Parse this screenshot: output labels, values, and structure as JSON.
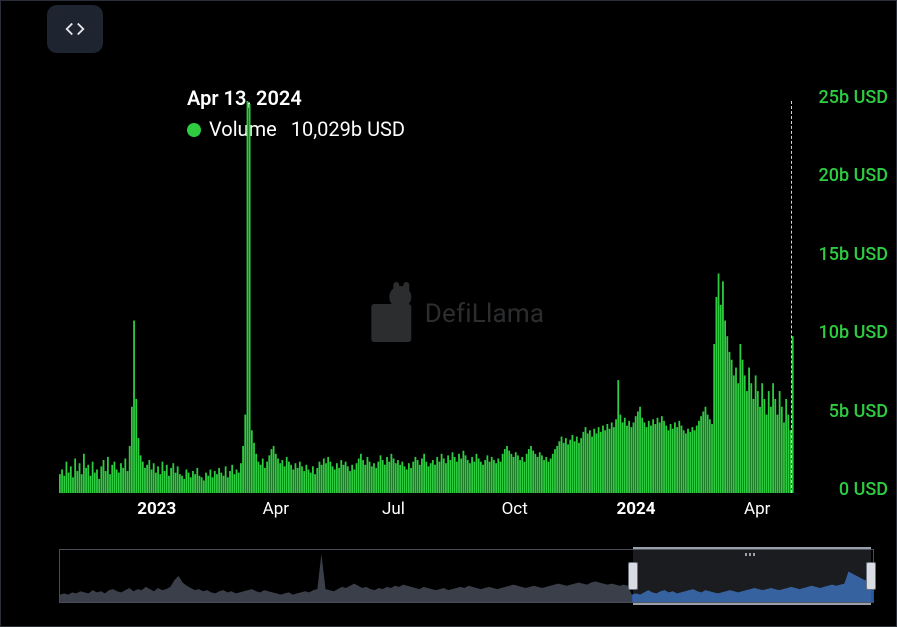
{
  "colors": {
    "background": "#000000",
    "frame_border": "#2a2f3a",
    "bar": "#2ecc40",
    "bar_alt": "#19a82f",
    "axis_text": "#ffffff",
    "y_tick": "#2ecc40",
    "crosshair": "#cfd3dc",
    "code_btn_bg": "#1e2430",
    "watermark": "#9aa0aa",
    "brush_border": "#474c56",
    "brush_area_fill": "#3a3f49",
    "brush_selected_fill": "#245aa6",
    "brush_window_bg": "rgba(120,126,140,0.22)",
    "brush_handle": "#d9dce3"
  },
  "tooltip": {
    "date": "Apr 13, 2024",
    "dot_color": "#2ecc40",
    "metric_label": "Volume",
    "value": "10,029b USD"
  },
  "watermark": {
    "text": "DefiLlama"
  },
  "chart": {
    "type": "bar",
    "y": {
      "min": 0,
      "max": 25,
      "unit": "b USD",
      "ticks": [
        {
          "v": 25,
          "label": "25b USD"
        },
        {
          "v": 20,
          "label": "20b USD"
        },
        {
          "v": 15,
          "label": "15b USD"
        },
        {
          "v": 10,
          "label": "10b USD"
        },
        {
          "v": 5,
          "label": "5b USD"
        },
        {
          "v": 0,
          "label": "0 USD"
        }
      ]
    },
    "x": {
      "ticks": [
        {
          "pos": 0.133,
          "label": "2023",
          "bold": true
        },
        {
          "pos": 0.295,
          "label": "Apr",
          "bold": false
        },
        {
          "pos": 0.455,
          "label": "Jul",
          "bold": false
        },
        {
          "pos": 0.62,
          "label": "Oct",
          "bold": false
        },
        {
          "pos": 0.785,
          "label": "2024",
          "bold": true
        },
        {
          "pos": 0.95,
          "label": "Apr",
          "bold": false
        }
      ]
    },
    "crosshair_x": 0.996,
    "bars": [
      1.2,
      1.5,
      1.1,
      2.0,
      1.3,
      1.7,
      1.0,
      2.2,
      1.4,
      1.9,
      1.2,
      2.5,
      1.6,
      1.8,
      1.1,
      2.0,
      1.3,
      1.5,
      0.9,
      1.7,
      2.1,
      1.4,
      2.3,
      1.2,
      1.8,
      2.0,
      1.5,
      1.3,
      1.9,
      1.6,
      2.2,
      1.4,
      3.0,
      5.5,
      11.0,
      6.0,
      3.5,
      2.4,
      2.0,
      1.6,
      1.8,
      2.1,
      1.5,
      1.9,
      1.3,
      1.7,
      1.2,
      2.0,
      1.4,
      1.8,
      1.1,
      1.6,
      1.9,
      1.3,
      1.7,
      1.2,
      1.1,
      0.9,
      1.5,
      1.3,
      1.0,
      1.4,
      1.2,
      1.6,
      1.1,
      1.0,
      0.8,
      1.3,
      1.1,
      1.5,
      1.0,
      1.4,
      1.2,
      1.6,
      1.3,
      1.1,
      1.7,
      1.0,
      1.4,
      1.8,
      1.2,
      1.5,
      1.3,
      1.9,
      3.0,
      5.0,
      25.4,
      24.8,
      4.0,
      3.2,
      2.5,
      2.0,
      1.8,
      2.2,
      1.6,
      2.0,
      2.4,
      2.8,
      3.0,
      2.5,
      2.2,
      1.9,
      2.1,
      1.7,
      2.3,
      2.0,
      1.8,
      1.5,
      1.9,
      1.6,
      2.0,
      1.7,
      1.4,
      1.8,
      1.5,
      1.3,
      1.7,
      1.2,
      1.6,
      2.0,
      1.8,
      2.2,
      1.9,
      2.3,
      2.0,
      1.7,
      1.5,
      1.9,
      1.6,
      2.1,
      1.8,
      2.0,
      1.7,
      1.4,
      1.8,
      1.5,
      1.9,
      2.2,
      2.5,
      2.1,
      1.8,
      2.3,
      2.0,
      1.7,
      1.9,
      1.6,
      2.0,
      2.4,
      2.1,
      1.8,
      2.3,
      2.0,
      2.5,
      2.2,
      1.9,
      2.1,
      1.8,
      2.0,
      1.7,
      1.5,
      1.9,
      1.6,
      2.0,
      2.3,
      2.1,
      1.8,
      2.2,
      2.5,
      2.0,
      1.7,
      1.9,
      2.1,
      1.8,
      2.3,
      2.0,
      2.5,
      2.2,
      1.9,
      2.4,
      2.1,
      2.6,
      2.3,
      2.0,
      2.5,
      2.2,
      2.7,
      2.4,
      2.1,
      1.9,
      2.3,
      2.0,
      2.5,
      2.2,
      2.0,
      1.8,
      2.1,
      2.4,
      2.0,
      2.3,
      2.1,
      1.9,
      2.2,
      2.0,
      2.5,
      2.8,
      3.0,
      2.7,
      2.5,
      2.3,
      2.6,
      2.4,
      2.1,
      2.3,
      2.0,
      2.5,
      2.8,
      3.0,
      2.7,
      2.5,
      2.3,
      2.6,
      2.4,
      2.1,
      2.3,
      2.0,
      2.2,
      2.5,
      2.8,
      3.0,
      3.3,
      3.6,
      3.2,
      3.5,
      3.1,
      3.4,
      3.7,
      3.3,
      3.6,
      3.2,
      3.5,
      3.9,
      4.2,
      3.8,
      4.0,
      3.6,
      4.1,
      3.8,
      4.2,
      3.9,
      4.3,
      4.0,
      4.4,
      4.1,
      4.5,
      4.2,
      4.7,
      7.2,
      5.0,
      4.5,
      4.8,
      4.3,
      4.6,
      4.2,
      4.5,
      4.9,
      5.2,
      5.5,
      4.8,
      4.5,
      4.2,
      4.6,
      4.3,
      4.7,
      4.4,
      4.8,
      4.5,
      4.9,
      4.6,
      4.3,
      4.0,
      4.4,
      4.1,
      4.5,
      4.2,
      4.6,
      4.3,
      4.0,
      3.8,
      4.1,
      3.9,
      4.2,
      4.0,
      4.3,
      4.6,
      4.9,
      5.2,
      5.5,
      5.0,
      4.7,
      4.4,
      9.5,
      12.5,
      14.0,
      12.0,
      13.5,
      11.0,
      10.0,
      9.0,
      8.5,
      7.5,
      8.0,
      7.0,
      9.5,
      8.5,
      7.5,
      6.5,
      8.0,
      7.0,
      6.0,
      7.5,
      6.5,
      5.5,
      7.0,
      6.0,
      5.0,
      6.5,
      5.5,
      7.0,
      6.0,
      5.0,
      6.5,
      5.5,
      4.5,
      6.0,
      5.0,
      4.0,
      10.0
    ]
  },
  "brush": {
    "window_start": 0.705,
    "window_end": 0.998,
    "series": [
      0.5,
      0.6,
      0.5,
      0.7,
      0.6,
      0.8,
      0.7,
      0.6,
      0.9,
      0.7,
      0.8,
      0.6,
      0.9,
      1.0,
      0.8,
      0.7,
      0.9,
      1.1,
      0.8,
      1.0,
      0.9,
      1.2,
      1.0,
      0.8,
      1.1,
      0.9,
      1.0,
      1.2,
      1.8,
      2.2,
      1.6,
      1.3,
      1.1,
      0.9,
      1.0,
      0.8,
      0.9,
      0.7,
      0.6,
      0.8,
      0.9,
      0.7,
      0.8,
      0.6,
      0.7,
      0.8,
      0.9,
      1.0,
      0.8,
      0.7,
      0.9,
      0.8,
      0.7,
      0.6,
      0.5,
      0.6,
      0.7,
      0.5,
      0.6,
      0.7,
      0.8,
      0.7,
      0.9,
      1.0,
      4.2,
      1.0,
      0.9,
      0.8,
      1.0,
      1.2,
      1.1,
      1.3,
      1.5,
      1.3,
      1.1,
      1.2,
      1.0,
      0.9,
      1.1,
      1.0,
      1.2,
      1.1,
      1.3,
      1.2,
      1.4,
      1.3,
      1.2,
      1.1,
      1.0,
      1.2,
      1.1,
      1.0,
      0.9,
      1.0,
      1.1,
      0.9,
      1.0,
      1.1,
      1.2,
      1.1,
      1.3,
      1.2,
      1.1,
      1.0,
      1.1,
      1.2,
      1.1,
      1.0,
      1.1,
      1.2,
      1.3,
      1.4,
      1.3,
      1.2,
      1.1,
      1.2,
      1.3,
      1.2,
      1.1,
      1.2,
      1.3,
      1.4,
      1.5,
      1.4,
      1.3,
      1.4,
      1.5,
      1.6,
      1.5,
      1.4,
      1.6,
      1.7,
      1.6,
      1.5,
      1.4,
      1.5,
      1.4,
      1.3,
      1.4,
      1.3,
      0.5,
      0.6,
      0.5,
      0.7,
      0.9,
      0.7,
      0.6,
      0.8,
      0.9,
      0.7,
      0.8,
      0.6,
      0.7,
      0.8,
      0.9,
      1.0,
      0.8,
      0.7,
      0.9,
      0.8,
      0.7,
      0.6,
      0.7,
      0.8,
      0.9,
      0.8,
      0.7,
      0.8,
      0.9,
      1.0,
      1.1,
      1.0,
      0.9,
      1.0,
      1.1,
      1.0,
      0.9,
      1.0,
      1.1,
      1.2,
      1.1,
      1.0,
      1.1,
      1.2,
      1.3,
      1.2,
      1.1,
      1.2,
      1.3,
      1.4,
      1.3,
      1.4,
      1.5,
      2.6,
      2.4,
      2.2,
      2.0,
      1.8,
      2.0,
      2.2
    ]
  }
}
